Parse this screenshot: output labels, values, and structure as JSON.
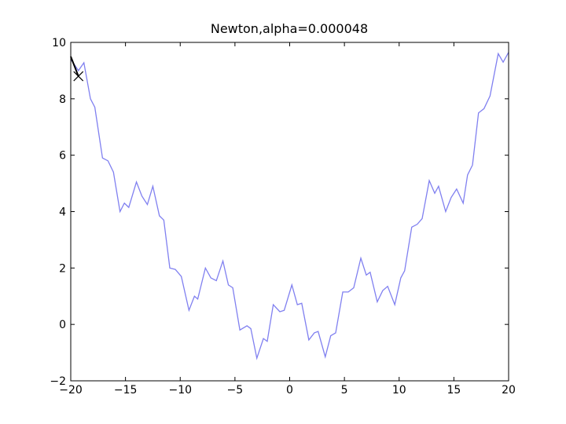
{
  "chart_data": {
    "type": "line",
    "title": "Newton,alpha=0.000048",
    "series": [
      {
        "color": "#8080f0",
        "x": [
          -20,
          -19.3,
          -18.8,
          -18.2,
          -17.8,
          -17.1,
          -16.6,
          -16.1,
          -15.5,
          -15.1,
          -14.7,
          -14.0,
          -13.5,
          -13.0,
          -12.5,
          -11.9,
          -11.5,
          -10.95,
          -10.45,
          -9.9,
          -9.2,
          -8.7,
          -8.4,
          -7.7,
          -7.2,
          -6.7,
          -6.1,
          -5.6,
          -5.2,
          -4.55,
          -3.9,
          -3.55,
          -3.0,
          -2.4,
          -2.05,
          -1.5,
          -0.9,
          -0.5,
          0.2,
          0.7,
          1.1,
          1.75,
          2.25,
          2.6,
          3.25,
          3.75,
          4.2,
          4.85,
          5.35,
          5.85,
          6.5,
          7.0,
          7.35,
          8.0,
          8.5,
          8.95,
          9.6,
          10.15,
          10.5,
          11.15,
          11.65,
          12.1,
          12.75,
          13.25,
          13.6,
          14.25,
          14.75,
          15.25,
          15.85,
          16.25,
          16.7,
          17.25,
          17.75,
          18.3,
          19.05,
          19.5,
          20
        ],
        "values": [
          9.4,
          9.0,
          9.28,
          8.0,
          7.7,
          5.9,
          5.8,
          5.4,
          4.0,
          4.3,
          4.15,
          5.05,
          4.55,
          4.25,
          4.9,
          3.85,
          3.7,
          2.0,
          1.95,
          1.7,
          0.5,
          1.0,
          0.9,
          2.0,
          1.65,
          1.55,
          2.25,
          1.4,
          1.3,
          -0.2,
          -0.05,
          -0.15,
          -1.2,
          -0.5,
          -0.6,
          0.7,
          0.45,
          0.5,
          1.4,
          0.7,
          0.75,
          -0.55,
          -0.3,
          -0.25,
          -1.15,
          -0.4,
          -0.3,
          1.15,
          1.15,
          1.3,
          2.35,
          1.75,
          1.85,
          0.8,
          1.2,
          1.35,
          0.7,
          1.65,
          1.9,
          3.45,
          3.55,
          3.75,
          5.1,
          4.65,
          4.9,
          4.0,
          4.5,
          4.8,
          4.3,
          5.3,
          5.65,
          7.5,
          7.65,
          8.1,
          9.6,
          9.3,
          9.65
        ]
      },
      {
        "color": "#000000",
        "x": [
          -20,
          -19.6,
          -19.3
        ],
        "values": [
          9.5,
          9.1,
          8.8
        ],
        "end_marker": "x"
      }
    ],
    "xlim": [
      -20,
      20
    ],
    "xticks": [
      {
        "value": -20,
        "label": "−20"
      },
      {
        "value": -15,
        "label": "−15"
      },
      {
        "value": -10,
        "label": "−10"
      },
      {
        "value": -5,
        "label": "−5"
      },
      0,
      5,
      10,
      15,
      20
    ],
    "ylim": [
      -2,
      10
    ],
    "yticks": [
      {
        "value": -2,
        "label": "−2"
      },
      0,
      2,
      4,
      6,
      8,
      10
    ]
  }
}
